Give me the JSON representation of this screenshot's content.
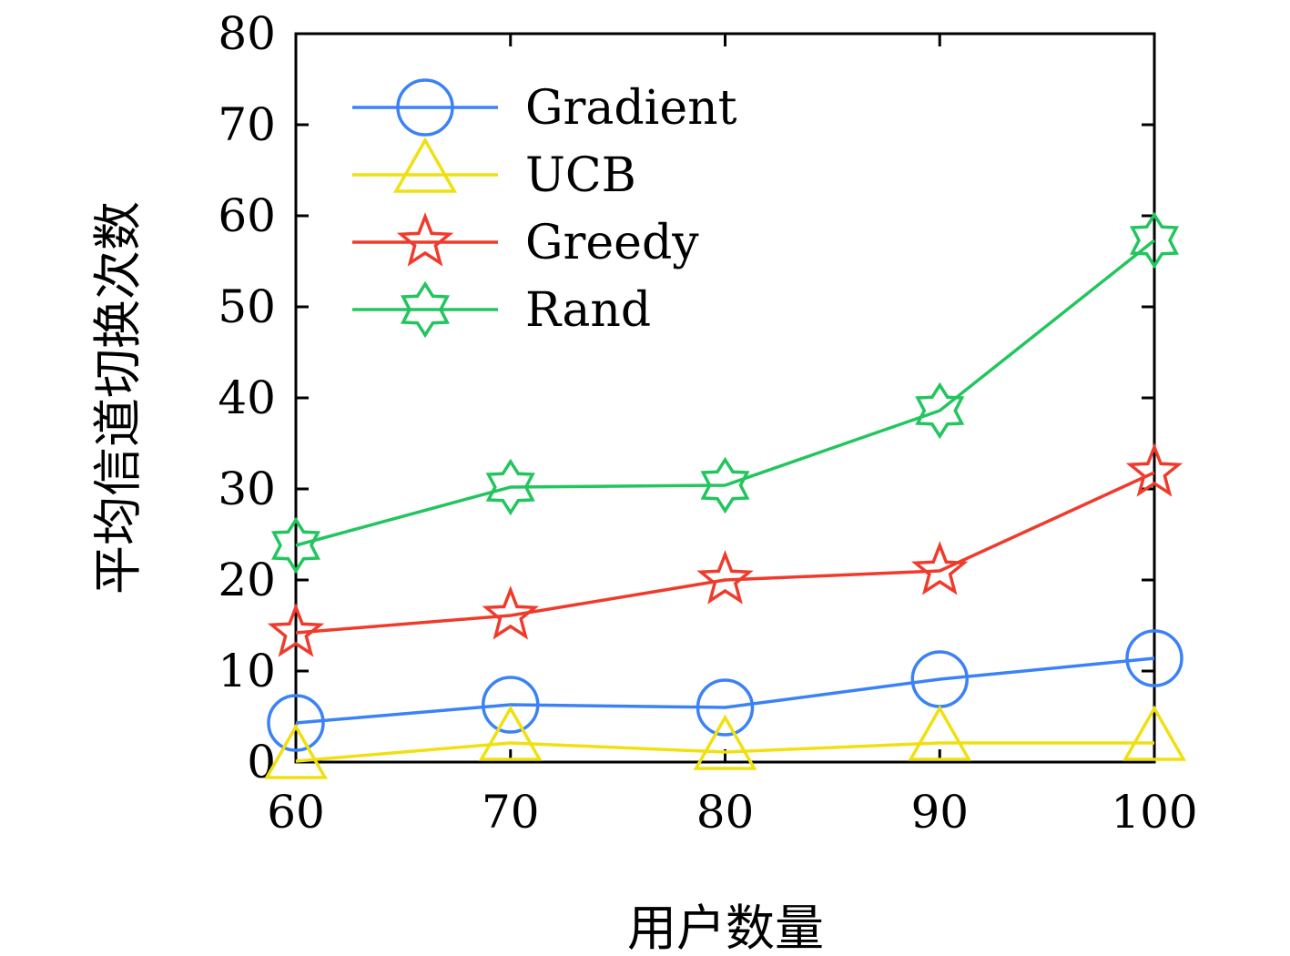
{
  "chart_data": {
    "type": "line",
    "xlabel": "用户数量",
    "ylabel": "平均信道切换次数",
    "x": [
      60,
      70,
      80,
      90,
      100
    ],
    "xlim": [
      60,
      100
    ],
    "ylim": [
      0,
      80
    ],
    "xticks": [
      "60",
      "70",
      "80",
      "90",
      "100"
    ],
    "yticks": [
      "0",
      "10",
      "20",
      "30",
      "40",
      "50",
      "60",
      "70",
      "80"
    ],
    "grid": false,
    "legend_position": "top-left",
    "series": [
      {
        "name": "Gradient",
        "color": "#3b82f6",
        "marker": "circle",
        "values": [
          4.3,
          6.3,
          6.0,
          9.1,
          11.4
        ]
      },
      {
        "name": "UCB",
        "color": "#f0e010",
        "marker": "triangle",
        "values": [
          0.1,
          2.1,
          1.1,
          2.1,
          2.1
        ]
      },
      {
        "name": "Greedy",
        "color": "#ef3b2c",
        "marker": "star",
        "values": [
          14.2,
          16.1,
          20.0,
          21.0,
          31.8
        ]
      },
      {
        "name": "Rand",
        "color": "#22c55e",
        "marker": "hexagram",
        "values": [
          23.8,
          30.2,
          30.4,
          38.6,
          57.3
        ]
      }
    ]
  }
}
